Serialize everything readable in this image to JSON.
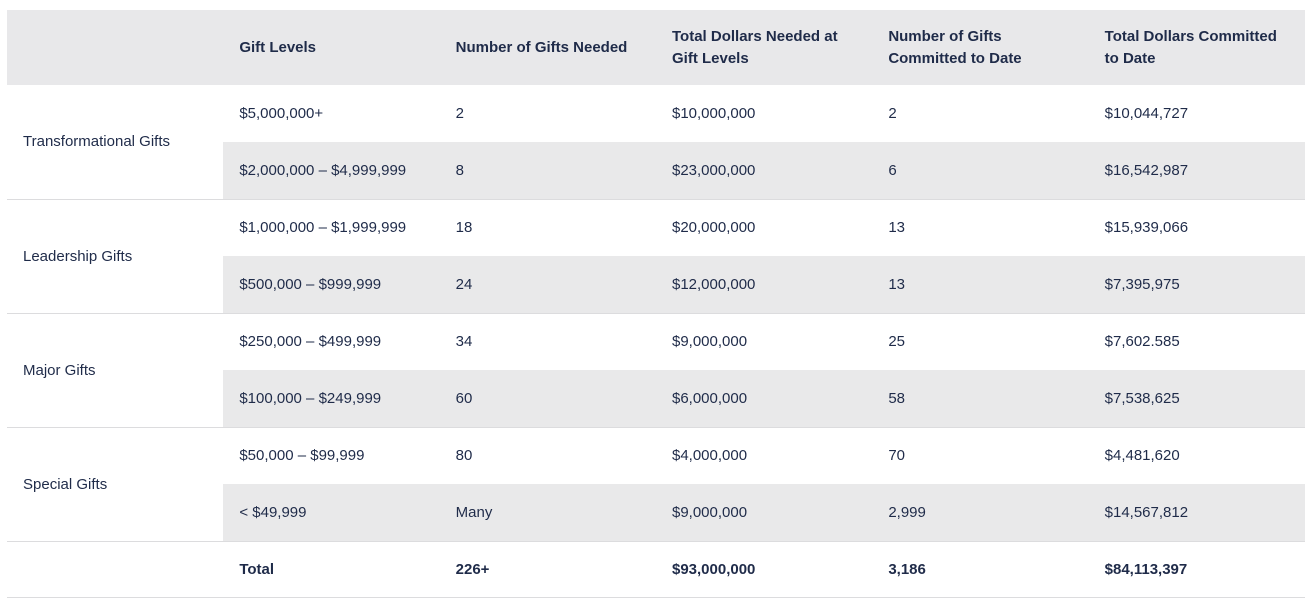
{
  "table": {
    "corner_label": "",
    "columns": [
      "Gift Levels",
      "Number of Gifts Needed",
      "Total Dollars Needed at Gift Levels",
      "Number of Gifts Committed to Date",
      "Total Dollars Committed to Date"
    ],
    "groups": [
      {
        "name": "Transformational Gifts",
        "rows": [
          [
            "$5,000,000+",
            "2",
            "$10,000,000",
            "2",
            "$10,044,727"
          ],
          [
            "$2,000,000 – $4,999,999",
            "8",
            "$23,000,000",
            "6",
            "$16,542,987"
          ]
        ]
      },
      {
        "name": "Leadership Gifts",
        "rows": [
          [
            "$1,000,000 – $1,999,999",
            "18",
            "$20,000,000",
            "13",
            "$15,939,066"
          ],
          [
            "$500,000 – $999,999",
            "24",
            "$12,000,000",
            "13",
            "$7,395,975"
          ]
        ]
      },
      {
        "name": "Major Gifts",
        "rows": [
          [
            "$250,000 – $499,999",
            "34",
            "$9,000,000",
            "25",
            "$7,602.585"
          ],
          [
            "$100,000 – $249,999",
            "60",
            "$6,000,000",
            "58",
            "$7,538,625"
          ]
        ]
      },
      {
        "name": "Special Gifts",
        "rows": [
          [
            "$50,000 – $99,999",
            "80",
            "$4,000,000",
            "70",
            "$4,481,620"
          ],
          [
            "< $49,999",
            "Many",
            "$9,000,000",
            "2,999",
            "$14,567,812"
          ]
        ]
      }
    ],
    "total": {
      "label": "Total",
      "values": [
        "226+",
        "$93,000,000",
        "3,186",
        "$84,113,397"
      ]
    }
  },
  "colors": {
    "text": "#1f2b49",
    "header_bg": "#e8e8ea",
    "alt_row_bg": "#e9e9ea",
    "border": "#dcdcde",
    "page_bg": "#ffffff"
  }
}
